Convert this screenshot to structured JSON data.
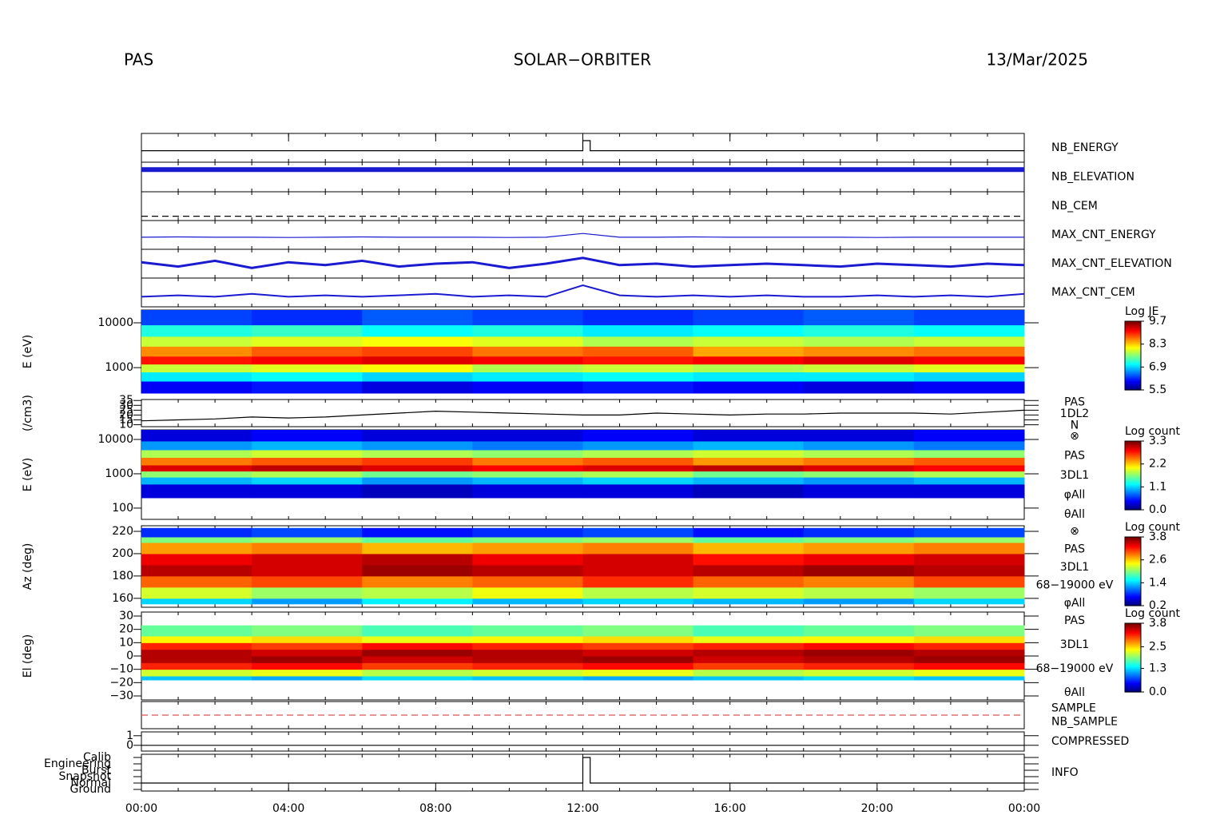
{
  "header": {
    "left": "PAS",
    "center": "SOLAR−ORBITER",
    "right": "13/Mar/2025"
  },
  "xaxis": {
    "xlim": [
      0,
      24
    ],
    "xticks": [
      {
        "value": 0,
        "label": "00:00"
      },
      {
        "value": 4,
        "label": "04:00"
      },
      {
        "value": 8,
        "label": "08:00"
      },
      {
        "value": 12,
        "label": "12:00"
      },
      {
        "value": 16,
        "label": "16:00"
      },
      {
        "value": 20,
        "label": "20:00"
      },
      {
        "value": 24,
        "label": "00:00"
      }
    ]
  },
  "chart_data": [
    {
      "type": "line",
      "labels": [
        {
          "text": "NB_ENERGY",
          "color": "#1c1c9c"
        }
      ],
      "ylim": [
        0,
        1
      ],
      "x": [
        0,
        12,
        12,
        12.2,
        12.2,
        24
      ],
      "series": [
        {
          "color": "#000000",
          "values": [
            0.4,
            0.4,
            0.75,
            0.75,
            0.4,
            0.4
          ]
        }
      ]
    },
    {
      "type": "line",
      "labels": [
        {
          "text": "NB_ELEVATION",
          "color": "#1c1c9c"
        }
      ],
      "ylim": [
        0,
        1
      ],
      "x": [
        0,
        24
      ],
      "series": [
        {
          "color": "#1a1ad0",
          "line_width": 6,
          "values": [
            0.75,
            0.75
          ]
        }
      ]
    },
    {
      "type": "line",
      "labels": [
        {
          "text": "NB_CEM",
          "color": "#1c1c9c"
        }
      ],
      "ylim": [
        0,
        1
      ],
      "x": [
        0,
        24
      ],
      "series": [
        {
          "color": "#000000",
          "dash": true,
          "values": [
            0.15,
            0.15
          ]
        }
      ]
    },
    {
      "type": "line",
      "labels": [
        {
          "text": "MAX_CNT_ENERGY",
          "color": "#1c1c9c"
        }
      ],
      "ylim": [
        0,
        1
      ],
      "x": [
        0,
        1,
        2,
        3,
        4,
        5,
        6,
        7,
        8,
        9,
        10,
        11,
        12,
        13,
        14,
        15,
        16,
        17,
        18,
        19,
        20,
        21,
        22,
        23,
        24
      ],
      "series": [
        {
          "color": "#1a1ad0",
          "values": [
            0.42,
            0.43,
            0.42,
            0.42,
            0.41,
            0.42,
            0.43,
            0.42,
            0.42,
            0.42,
            0.41,
            0.42,
            0.55,
            0.42,
            0.42,
            0.43,
            0.42,
            0.42,
            0.42,
            0.42,
            0.41,
            0.42,
            0.42,
            0.42,
            0.42
          ]
        }
      ]
    },
    {
      "type": "line",
      "labels": [
        {
          "text": "MAX_CNT_ELEVATION",
          "color": "#1c1c9c"
        }
      ],
      "ylim": [
        0,
        1
      ],
      "x": [
        0,
        1,
        2,
        3,
        4,
        5,
        6,
        7,
        8,
        9,
        10,
        11,
        12,
        13,
        14,
        15,
        16,
        17,
        18,
        19,
        20,
        21,
        22,
        23,
        24
      ],
      "series": [
        {
          "color": "#1a1ad0",
          "line_width": 3,
          "values": [
            0.55,
            0.4,
            0.6,
            0.35,
            0.55,
            0.45,
            0.6,
            0.4,
            0.5,
            0.55,
            0.35,
            0.5,
            0.7,
            0.45,
            0.5,
            0.4,
            0.45,
            0.5,
            0.45,
            0.4,
            0.5,
            0.45,
            0.4,
            0.5,
            0.45
          ]
        }
      ]
    },
    {
      "type": "line",
      "labels": [
        {
          "text": "MAX_CNT_CEM",
          "color": "#1c1c9c"
        }
      ],
      "ylim": [
        0,
        1
      ],
      "x": [
        0,
        1,
        2,
        3,
        4,
        5,
        6,
        7,
        8,
        9,
        10,
        11,
        12,
        13,
        14,
        15,
        16,
        17,
        18,
        19,
        20,
        21,
        22,
        23,
        24
      ],
      "series": [
        {
          "color": "#1a1ad0",
          "line_width": 2,
          "values": [
            0.35,
            0.4,
            0.35,
            0.45,
            0.35,
            0.4,
            0.35,
            0.4,
            0.45,
            0.35,
            0.4,
            0.35,
            0.75,
            0.4,
            0.35,
            0.4,
            0.35,
            0.4,
            0.35,
            0.35,
            0.4,
            0.35,
            0.4,
            0.35,
            0.45
          ]
        }
      ]
    },
    {
      "type": "heatmap",
      "ylabel": "E (eV)",
      "log": true,
      "ylim": [
        270,
        19300
      ],
      "yticks": [
        1000,
        10000
      ],
      "xbins": [
        0,
        3,
        6,
        9,
        12,
        15,
        18,
        21,
        24
      ],
      "ybins": [
        270,
        500,
        800,
        1200,
        1800,
        3000,
        5000,
        9000,
        19300
      ],
      "z": [
        [
          6.0,
          6.1,
          5.9,
          6.0,
          6.1,
          6.0,
          5.9,
          6.0
        ],
        [
          7.0,
          7.1,
          6.9,
          7.0,
          7.1,
          7.0,
          7.0,
          6.9
        ],
        [
          7.9,
          8.0,
          8.1,
          7.8,
          7.9,
          7.8,
          7.9,
          8.0
        ],
        [
          9.1,
          9.2,
          9.3,
          9.2,
          9.1,
          9.2,
          9.3,
          9.2
        ],
        [
          8.6,
          8.8,
          8.9,
          8.7,
          8.8,
          8.5,
          8.6,
          8.7
        ],
        [
          7.9,
          8.0,
          8.1,
          8.0,
          7.8,
          7.9,
          7.8,
          7.9
        ],
        [
          7.2,
          7.3,
          7.1,
          7.2,
          7.0,
          7.1,
          7.2,
          7.1
        ],
        [
          6.3,
          6.2,
          6.4,
          6.3,
          6.2,
          6.3,
          6.4,
          6.3
        ]
      ],
      "colorbar": {
        "title": "Log JE",
        "clim": [
          5.5,
          9.7
        ],
        "ticks": [
          5.5,
          6.9,
          8.3,
          9.7
        ]
      }
    },
    {
      "type": "line",
      "ylabel": "(/cm3)",
      "ylim": [
        8,
        36
      ],
      "yticks": [
        10,
        15,
        20,
        25,
        30,
        35
      ],
      "annotations": [
        "PAS",
        "1DL2",
        "N"
      ],
      "x": [
        0,
        1,
        2,
        3,
        4,
        5,
        6,
        7,
        8,
        9,
        10,
        11,
        12,
        13,
        14,
        15,
        16,
        17,
        18,
        19,
        20,
        21,
        22,
        23,
        24
      ],
      "series": [
        {
          "color": "#000000",
          "values": [
            14,
            15,
            16,
            18,
            17,
            18,
            20,
            22,
            24,
            23,
            22,
            21,
            20,
            20,
            22,
            21,
            20,
            21,
            21,
            22,
            22,
            22,
            21,
            23,
            25
          ]
        }
      ]
    },
    {
      "type": "heatmap",
      "ylabel": "E (eV)",
      "log": true,
      "ylim": [
        47,
        19000
      ],
      "yticks": [
        100,
        1000,
        10000
      ],
      "annotations": [
        "⊗",
        "PAS",
        "3DL1",
        "φAll",
        "θAll"
      ],
      "xbins": [
        0,
        3,
        6,
        9,
        12,
        15,
        18,
        21,
        24
      ],
      "ybins": [
        200,
        500,
        800,
        1200,
        1800,
        3000,
        5000,
        9000,
        19000
      ],
      "z": [
        [
          0.3,
          0.3,
          0.2,
          0.3,
          0.3,
          0.2,
          0.3,
          0.3
        ],
        [
          1.0,
          1.1,
          0.9,
          1.0,
          1.1,
          1.0,
          0.9,
          1.0
        ],
        [
          1.7,
          1.8,
          1.6,
          1.7,
          1.8,
          1.6,
          1.7,
          1.8
        ],
        [
          3.0,
          3.1,
          3.0,
          2.9,
          3.0,
          3.1,
          3.0,
          2.9
        ],
        [
          2.5,
          2.6,
          2.7,
          2.5,
          2.6,
          2.4,
          2.5,
          2.6
        ],
        [
          1.8,
          1.9,
          1.8,
          1.7,
          1.8,
          1.9,
          1.8,
          1.7
        ],
        [
          0.9,
          1.0,
          0.9,
          0.8,
          0.9,
          1.0,
          0.9,
          0.8
        ],
        [
          0.3,
          0.4,
          0.3,
          0.3,
          0.4,
          0.3,
          0.3,
          0.4
        ]
      ],
      "colorbar": {
        "title": "Log count",
        "clim": [
          0,
          3.3
        ],
        "ticks": [
          {
            "value": 0,
            "label": "0.0"
          },
          1.1,
          2.2,
          3.3
        ]
      }
    },
    {
      "type": "heatmap",
      "ylabel": "Az (deg)",
      "ylim": [
        152,
        225
      ],
      "yticks": [
        160,
        180,
        200,
        220
      ],
      "annotations": [
        "⊗",
        "PAS",
        "3DL1",
        "68−19000 eV",
        "φAll"
      ],
      "xbins": [
        0,
        3,
        6,
        9,
        12,
        15,
        18,
        21,
        24
      ],
      "ybins": [
        155,
        160,
        170,
        180,
        190,
        200,
        210,
        215,
        223
      ],
      "z": [
        [
          1.4,
          1.2,
          1.5,
          1.3,
          1.4,
          1.3,
          1.2,
          1.4
        ],
        [
          2.3,
          2.1,
          2.2,
          2.4,
          2.2,
          2.3,
          2.2,
          2.1
        ],
        [
          3.0,
          3.1,
          2.9,
          3.0,
          3.2,
          3.0,
          2.9,
          3.1
        ],
        [
          3.6,
          3.5,
          3.7,
          3.6,
          3.5,
          3.6,
          3.7,
          3.6
        ],
        [
          3.4,
          3.5,
          3.6,
          3.4,
          3.5,
          3.3,
          3.4,
          3.5
        ],
        [
          2.8,
          2.9,
          2.7,
          2.8,
          2.9,
          2.7,
          2.8,
          2.9
        ],
        [
          2.0,
          2.1,
          1.9,
          2.0,
          2.1,
          1.9,
          2.0,
          2.1
        ],
        [
          0.8,
          0.9,
          0.7,
          0.8,
          0.9,
          0.7,
          0.8,
          0.9
        ]
      ],
      "colorbar": {
        "title": "Log count",
        "clim": [
          0.2,
          3.8
        ],
        "ticks": [
          0.2,
          1.4,
          2.6,
          3.8
        ]
      }
    },
    {
      "type": "heatmap",
      "ylabel": "El (deg)",
      "ylim": [
        -33,
        33
      ],
      "yticks": [
        {
          "value": -30,
          "label": "−30"
        },
        {
          "value": -20,
          "label": "−20"
        },
        {
          "value": -10,
          "label": "−10"
        },
        0,
        10,
        20,
        30
      ],
      "annotations": [
        "PAS",
        "3DL1",
        "68−19000 eV",
        "θAll"
      ],
      "xbins": [
        0,
        3,
        6,
        9,
        12,
        15,
        18,
        21,
        24
      ],
      "ybins": [
        -18,
        -15,
        -10,
        -5,
        0,
        5,
        10,
        15,
        23
      ],
      "z": [
        [
          1.2,
          1.1,
          1.3,
          1.2,
          1.1,
          1.2,
          1.3,
          1.2
        ],
        [
          2.2,
          2.3,
          2.1,
          2.2,
          2.3,
          2.1,
          2.2,
          2.3
        ],
        [
          3.2,
          3.3,
          3.1,
          3.2,
          3.3,
          3.1,
          3.2,
          3.3
        ],
        [
          3.6,
          3.7,
          3.5,
          3.6,
          3.7,
          3.5,
          3.6,
          3.7
        ],
        [
          3.6,
          3.5,
          3.7,
          3.6,
          3.5,
          3.6,
          3.7,
          3.6
        ],
        [
          3.2,
          3.1,
          3.3,
          3.2,
          3.1,
          3.2,
          3.3,
          3.2
        ],
        [
          2.4,
          2.5,
          2.3,
          2.4,
          2.5,
          2.3,
          2.4,
          2.5
        ],
        [
          1.8,
          1.9,
          1.7,
          1.8,
          1.9,
          1.7,
          1.8,
          1.9
        ]
      ],
      "colorbar": {
        "title": "Log count",
        "clim": [
          0,
          3.8
        ],
        "ticks": [
          {
            "value": 0,
            "label": "0.0"
          },
          1.3,
          2.5,
          3.8
        ]
      }
    },
    {
      "type": "line",
      "labels": [
        {
          "text": "SAMPLE",
          "color": "#1c1c9c"
        },
        {
          "text": "NB_SAMPLE",
          "color": "#d01010"
        }
      ],
      "ylim": [
        -0.12,
        0.12
      ],
      "x": [
        0,
        24
      ],
      "series": [
        {
          "color": "#e05050",
          "dash": true,
          "values": [
            0,
            0
          ]
        }
      ]
    },
    {
      "type": "line",
      "labels": [
        {
          "text": "COMPRESSED",
          "color": "#1c1c9c"
        }
      ],
      "ylim": [
        -0.6,
        1.4
      ],
      "yticks": [
        0,
        1
      ],
      "x": [
        0,
        24
      ],
      "series": [
        {
          "color": "#000000",
          "values": [
            0,
            0
          ]
        }
      ]
    },
    {
      "type": "category_line",
      "labels": [
        {
          "text": "INFO",
          "color": "#1c1c9c"
        }
      ],
      "categories": [
        "Calib",
        "Engineering",
        "Burst",
        "Snapshot",
        "Normal",
        "Ground"
      ],
      "x": [
        0,
        12,
        12,
        12.2,
        12.2,
        24
      ],
      "series": [
        {
          "color": "#000000",
          "values": [
            "Normal",
            "Normal",
            "Calib",
            "Calib",
            "Normal",
            "Normal"
          ]
        }
      ]
    }
  ]
}
